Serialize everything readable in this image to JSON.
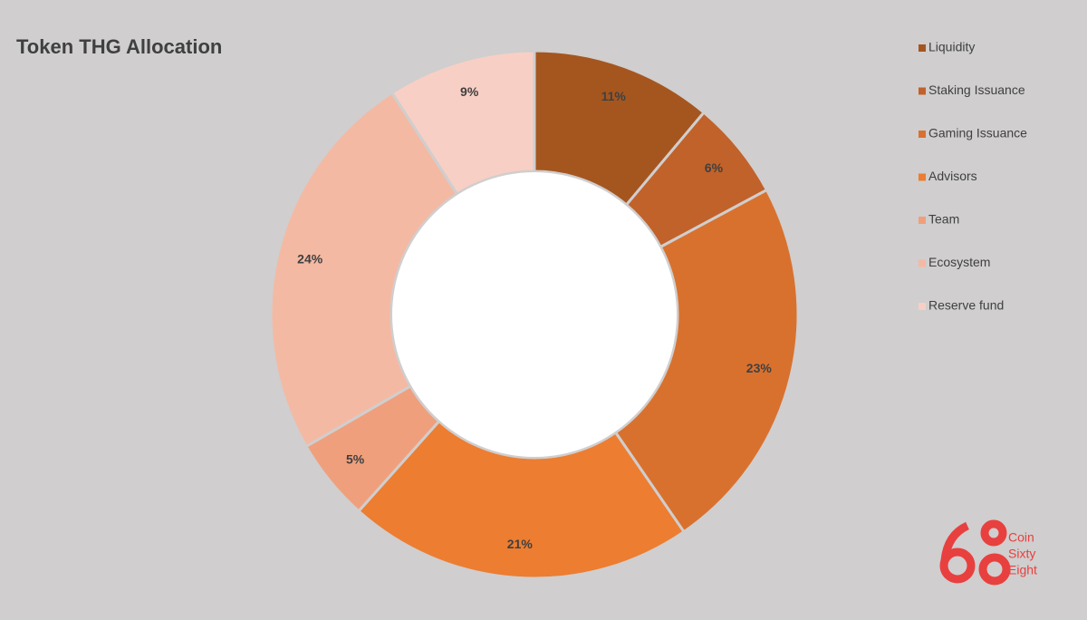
{
  "chart_data": {
    "type": "donut",
    "title": "Token THG Allocation",
    "categories": [
      "Liquidity",
      "Staking Issuance",
      "Gaming Issuance",
      "Advisors",
      "Team",
      "Ecosystem",
      "Reserve fund"
    ],
    "values": [
      11,
      6,
      23,
      21,
      5,
      24,
      9
    ],
    "value_labels": [
      "11%",
      "6%",
      "23%",
      "21%",
      "5%",
      "24%",
      "9%"
    ],
    "colors": [
      "#a5561f",
      "#c1622a",
      "#d9712e",
      "#ed7d31",
      "#f09f7c",
      "#f4b9a3",
      "#f8cfc4"
    ],
    "legend": "top-right",
    "annotations": [
      "Coin",
      "Sixty",
      "Eight"
    ]
  }
}
